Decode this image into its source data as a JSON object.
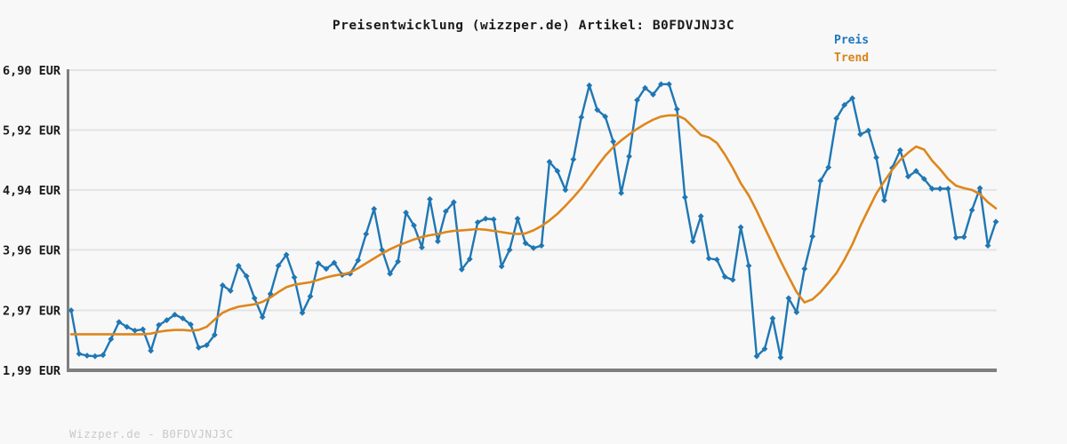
{
  "title": "Preisentwicklung (wizzper.de) Artikel: B0FDVJNJ3C",
  "footer": "Wizzper.de - B0FDVJNJ3C",
  "colors": {
    "background": "#f8f8f8",
    "grid": "#e3e3e3",
    "axis": "#7f7f7f",
    "tick_text": "#1a1a1a",
    "price_blue": "#1f77b4",
    "trend_orange": "#de861b",
    "legend_preis": "#1b79be",
    "legend_trend": "#d9831c",
    "watermark": "#c9c9c9"
  },
  "chart_data": {
    "type": "line",
    "title": "Preisentwicklung (wizzper.de) Artikel: B0FDVJNJ3C",
    "currency": "EUR",
    "ylim": [
      1.99,
      6.9
    ],
    "grid": "horizontal",
    "legend_position": "top-right",
    "x_axis": {
      "labels_visible": false,
      "note": "time index, no tick labels shown"
    },
    "y_ticks": [
      {
        "value": 6.9,
        "label": "6,90 EUR"
      },
      {
        "value": 5.92,
        "label": "5,92 EUR"
      },
      {
        "value": 4.94,
        "label": "4,94 EUR"
      },
      {
        "value": 3.96,
        "label": "3,96 EUR"
      },
      {
        "value": 2.97,
        "label": "2,97 EUR"
      },
      {
        "value": 1.99,
        "label": "1,99 EUR"
      }
    ],
    "series": [
      {
        "name": "Preis",
        "color": "#1f77b4",
        "marker": "diamond",
        "line_width": 2.4,
        "values": [
          2.97,
          2.26,
          2.23,
          2.22,
          2.24,
          2.5,
          2.78,
          2.7,
          2.64,
          2.66,
          2.31,
          2.73,
          2.81,
          2.9,
          2.84,
          2.74,
          2.36,
          2.4,
          2.57,
          3.38,
          3.29,
          3.7,
          3.53,
          3.17,
          2.86,
          3.24,
          3.7,
          3.88,
          3.51,
          2.93,
          3.2,
          3.74,
          3.65,
          3.75,
          3.55,
          3.57,
          3.79,
          4.22,
          4.63,
          3.96,
          3.57,
          3.77,
          4.57,
          4.36,
          4.0,
          4.79,
          4.1,
          4.59,
          4.74,
          3.64,
          3.81,
          4.41,
          4.47,
          4.46,
          3.69,
          3.96,
          4.47,
          4.07,
          3.99,
          4.03,
          5.4,
          5.25,
          4.94,
          5.44,
          6.13,
          6.65,
          6.25,
          6.14,
          5.73,
          4.89,
          5.49,
          6.41,
          6.61,
          6.5,
          6.67,
          6.67,
          6.26,
          4.82,
          4.1,
          4.51,
          3.82,
          3.8,
          3.52,
          3.47,
          4.33,
          3.7,
          2.22,
          2.34,
          2.84,
          2.2,
          3.17,
          2.94,
          3.65,
          4.18,
          5.09,
          5.31,
          6.11,
          6.33,
          6.44,
          5.85,
          5.91,
          5.47,
          4.77,
          5.3,
          5.59,
          5.16,
          5.25,
          5.12,
          4.96,
          4.96,
          4.96,
          4.16,
          4.17,
          4.61,
          4.97,
          4.03,
          4.42
        ]
      },
      {
        "name": "Trend",
        "color": "#de861b",
        "marker": "none",
        "line_width": 2.6,
        "values": [
          2.58,
          2.58,
          2.58,
          2.58,
          2.58,
          2.58,
          2.58,
          2.58,
          2.58,
          2.58,
          2.59,
          2.62,
          2.64,
          2.65,
          2.65,
          2.64,
          2.65,
          2.7,
          2.82,
          2.93,
          2.99,
          3.03,
          3.05,
          3.07,
          3.11,
          3.18,
          3.27,
          3.35,
          3.39,
          3.41,
          3.43,
          3.47,
          3.51,
          3.54,
          3.56,
          3.59,
          3.66,
          3.74,
          3.82,
          3.9,
          3.97,
          4.03,
          4.08,
          4.13,
          4.17,
          4.2,
          4.22,
          4.25,
          4.27,
          4.28,
          4.29,
          4.3,
          4.29,
          4.27,
          4.25,
          4.23,
          4.22,
          4.23,
          4.28,
          4.35,
          4.44,
          4.55,
          4.68,
          4.82,
          4.97,
          5.15,
          5.33,
          5.5,
          5.64,
          5.75,
          5.85,
          5.94,
          6.02,
          6.09,
          6.14,
          6.16,
          6.16,
          6.1,
          5.97,
          5.84,
          5.8,
          5.71,
          5.52,
          5.3,
          5.05,
          4.85,
          4.6,
          4.32,
          4.05,
          3.78,
          3.52,
          3.27,
          3.1,
          3.15,
          3.27,
          3.42,
          3.58,
          3.8,
          4.05,
          4.35,
          4.62,
          4.88,
          5.08,
          5.27,
          5.43,
          5.55,
          5.65,
          5.6,
          5.42,
          5.28,
          5.12,
          5.01,
          4.97,
          4.94,
          4.87,
          4.74,
          4.64
        ]
      }
    ]
  }
}
